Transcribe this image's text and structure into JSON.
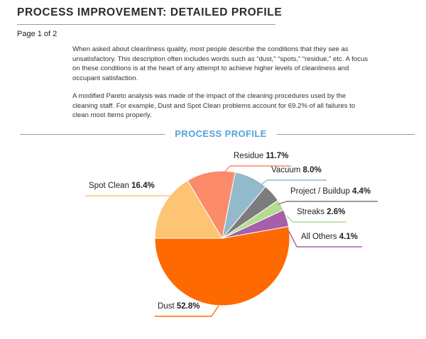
{
  "header": {
    "title": "PROCESS IMPROVEMENT: DETAILED PROFILE",
    "page_label": "Page 1 of 2"
  },
  "body": {
    "paragraph_1": "When asked about cleanliness quality, most people describe the conditions that they see as unsatisfactory. This description often includes words such as “dust,” “spots,” “residue,” etc. A focus on these conditions is at the heart of any attempt to achieve higher levels of cleanliness and occupant satisfaction.",
    "paragraph_2": "A modified Pareto analysis was made of the impact of the cleaning procedures used by the cleaning staff. For example, Dust and Spot Clean problems account for 69.2% of all failures to clean most Items properly."
  },
  "section": {
    "title": "PROCESS PROFILE"
  },
  "chart_data": {
    "type": "pie",
    "title": "PROCESS PROFILE",
    "slices": [
      {
        "label": "Dust",
        "value": 52.8,
        "display": "52.8%",
        "color": "#ff6a00"
      },
      {
        "label": "Spot Clean",
        "value": 16.4,
        "display": "16.4%",
        "color": "#fdc474"
      },
      {
        "label": "Residue",
        "value": 11.7,
        "display": "11.7%",
        "color": "#fb8b6b"
      },
      {
        "label": "Vacuum",
        "value": 8.0,
        "display": "8.0%",
        "color": "#93b9cd"
      },
      {
        "label": "Project / Buildup",
        "value": 4.4,
        "display": "4.4%",
        "color": "#7c7c7c"
      },
      {
        "label": "Streaks",
        "value": 2.6,
        "display": "2.6%",
        "color": "#b3dc8e"
      },
      {
        "label": "All Others",
        "value": 4.1,
        "display": "4.1%",
        "color": "#a660aa"
      }
    ]
  }
}
